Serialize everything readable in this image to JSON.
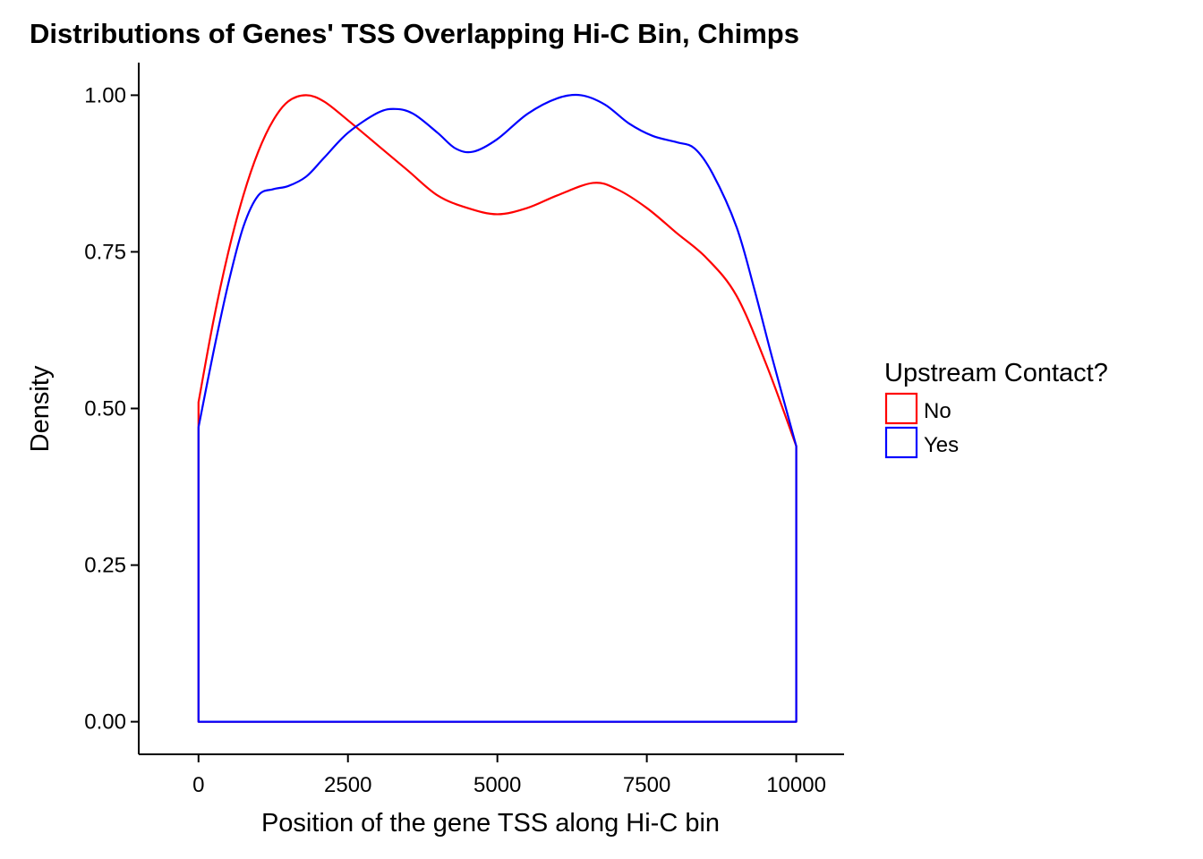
{
  "chart_data": {
    "type": "line",
    "title": "Distributions of Genes' TSS Overlapping Hi-C Bin, Chimps",
    "xlabel": "Position of the gene TSS along Hi-C bin",
    "ylabel": "Density",
    "xlim": [
      -1000,
      10800
    ],
    "ylim": [
      -0.052,
      1.052
    ],
    "x_ticks": [
      0,
      2500,
      5000,
      7500,
      10000
    ],
    "x_tick_labels": [
      "0",
      "2500",
      "5000",
      "7500",
      "10000"
    ],
    "y_ticks": [
      0,
      0.25,
      0.5,
      0.75,
      1.0
    ],
    "y_tick_labels": [
      "0.00",
      "0.25",
      "0.50",
      "0.75",
      "1.00"
    ],
    "grid": false,
    "legend": {
      "title": "Upstream Contact?",
      "position": "right"
    },
    "series": [
      {
        "name": "No",
        "color": "#ff0000",
        "x": [
          0,
          250,
          500,
          750,
          1000,
          1250,
          1500,
          1800,
          2100,
          2500,
          3000,
          3500,
          4000,
          4500,
          5000,
          5500,
          6000,
          6600,
          7000,
          7500,
          8000,
          8500,
          9000,
          9500,
          10000
        ],
        "y": [
          0.51,
          0.64,
          0.75,
          0.84,
          0.91,
          0.96,
          0.99,
          1.0,
          0.99,
          0.96,
          0.92,
          0.88,
          0.84,
          0.82,
          0.81,
          0.82,
          0.84,
          0.86,
          0.85,
          0.82,
          0.78,
          0.74,
          0.68,
          0.57,
          0.44
        ]
      },
      {
        "name": "Yes",
        "color": "#0000ff",
        "x": [
          0,
          250,
          500,
          750,
          1000,
          1250,
          1500,
          1800,
          2100,
          2500,
          3000,
          3300,
          3600,
          4000,
          4300,
          4600,
          5000,
          5500,
          6000,
          6400,
          6800,
          7200,
          7600,
          8000,
          8300,
          8600,
          9000,
          9300,
          9600,
          10000
        ],
        "y": [
          0.47,
          0.59,
          0.7,
          0.79,
          0.84,
          0.85,
          0.855,
          0.87,
          0.9,
          0.94,
          0.972,
          0.978,
          0.97,
          0.94,
          0.915,
          0.91,
          0.93,
          0.97,
          0.995,
          1.0,
          0.985,
          0.955,
          0.935,
          0.925,
          0.915,
          0.875,
          0.79,
          0.69,
          0.58,
          0.44
        ]
      }
    ]
  }
}
